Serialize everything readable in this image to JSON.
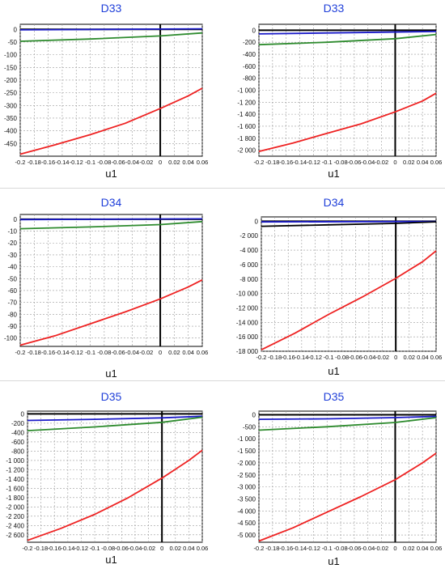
{
  "colors": {
    "title": "#1f3fd9",
    "black": "#000000",
    "blue": "#1a1ac8",
    "green": "#2e8b2e",
    "red": "#ee2222",
    "grid": "#9a9a9a"
  },
  "chart_data": [
    {
      "type": "line",
      "title": "D33",
      "xlabel": "u1",
      "ylabel": "",
      "xlim": [
        -0.2,
        0.06
      ],
      "ylim": [
        -500,
        20
      ],
      "xticks": [
        "-0.2",
        "-0.18",
        "-0.16",
        "-0.14",
        "-0.12",
        "-0.1",
        "-0.08",
        "-0.06",
        "-0.04",
        "-0.02",
        "0",
        "0.02",
        "0.04",
        "0.06"
      ],
      "yticks": [
        "0",
        "-50",
        "-100",
        "-150",
        "-200",
        "-250",
        "-300",
        "-350",
        "-400",
        "-450"
      ],
      "grid": true,
      "series": [
        {
          "color": "black",
          "x": [
            -0.2,
            0.06
          ],
          "y": [
            0,
            0
          ]
        },
        {
          "color": "blue",
          "x": [
            -0.2,
            0.06
          ],
          "y": [
            -2,
            2
          ]
        },
        {
          "color": "green",
          "x": [
            -0.2,
            -0.1,
            0,
            0.06
          ],
          "y": [
            -47,
            -38,
            -26,
            -14
          ]
        },
        {
          "color": "red",
          "x": [
            -0.2,
            -0.15,
            -0.1,
            -0.05,
            0,
            0.04,
            0.06
          ],
          "y": [
            -492,
            -455,
            -415,
            -370,
            -312,
            -262,
            -232
          ]
        }
      ]
    },
    {
      "type": "line",
      "title": "D33",
      "xlabel": "u1",
      "ylabel": "",
      "xlim": [
        -0.2,
        0.06
      ],
      "ylim": [
        -2100,
        100
      ],
      "xticks": [
        "-0.2",
        "-0.18",
        "-0.16",
        "-0.14",
        "-0.12",
        "-0.1",
        "-0.08",
        "-0.06",
        "-0.04",
        "-0.02",
        "0",
        "0.02",
        "0.04",
        "0.06"
      ],
      "yticks": [
        "0",
        "-200",
        "-400",
        "-600",
        "-800",
        "-1 000",
        "-1 200",
        "-1 400",
        "-1 600",
        "-1 800",
        "-2 000"
      ],
      "grid": true,
      "series": [
        {
          "color": "black",
          "x": [
            -0.2,
            0.06
          ],
          "y": [
            0,
            0
          ]
        },
        {
          "color": "blue",
          "x": [
            -0.2,
            0.06
          ],
          "y": [
            -60,
            -20
          ]
        },
        {
          "color": "green",
          "x": [
            -0.2,
            -0.1,
            0,
            0.06
          ],
          "y": [
            -240,
            -200,
            -140,
            -70
          ]
        },
        {
          "color": "red",
          "x": [
            -0.2,
            -0.15,
            -0.1,
            -0.05,
            0,
            0.04,
            0.06
          ],
          "y": [
            -2020,
            -1880,
            -1720,
            -1560,
            -1360,
            -1180,
            -1050
          ]
        }
      ]
    },
    {
      "type": "line",
      "title": "D34",
      "xlabel": "u1",
      "ylabel": "",
      "xlim": [
        -0.2,
        0.06
      ],
      "ylim": [
        -107,
        4
      ],
      "xticks": [
        "-0.2",
        "-0.18",
        "-0.16",
        "-0.14",
        "-0.12",
        "-0.1",
        "-0.08",
        "-0.06",
        "-0.04",
        "-0.02",
        "0",
        "0.02",
        "0.04",
        "0.06"
      ],
      "yticks": [
        "0",
        "-10",
        "-20",
        "-30",
        "-40",
        "-50",
        "-60",
        "-70",
        "-80",
        "-90",
        "-100"
      ],
      "grid": true,
      "series": [
        {
          "color": "black",
          "x": [
            -0.2,
            0.06
          ],
          "y": [
            0,
            0
          ]
        },
        {
          "color": "blue",
          "x": [
            -0.2,
            0.06
          ],
          "y": [
            -0.3,
            0.3
          ]
        },
        {
          "color": "green",
          "x": [
            -0.2,
            -0.1,
            0,
            0.06
          ],
          "y": [
            -8,
            -6.5,
            -4.5,
            -2
          ]
        },
        {
          "color": "red",
          "x": [
            -0.2,
            -0.15,
            -0.1,
            -0.05,
            0,
            0.04,
            0.06
          ],
          "y": [
            -106,
            -98,
            -88,
            -78,
            -67,
            -57,
            -51
          ]
        }
      ]
    },
    {
      "type": "line",
      "title": "D34",
      "xlabel": "u1",
      "ylabel": "",
      "xlim": [
        -0.2,
        0.06
      ],
      "ylim": [
        -18000,
        600
      ],
      "xticks": [
        "-0.2",
        "-0.18",
        "-0.16",
        "-0.14",
        "-0.12",
        "-0.1",
        "-0.08",
        "-0.06",
        "-0.04",
        "-0.02",
        "0",
        "0.02",
        "0.04",
        "0.06"
      ],
      "yticks": [
        "0",
        "-2 000",
        "-4 000",
        "-6 000",
        "-8 000",
        "-10 000",
        "-12 000",
        "-14 000",
        "-16 000",
        "-18 000"
      ],
      "grid": true,
      "series": [
        {
          "color": "black",
          "x": [
            -0.2,
            0.06
          ],
          "y": [
            0,
            0
          ]
        },
        {
          "color": "blue",
          "x": [
            -0.2,
            0.06
          ],
          "y": [
            -100,
            -30
          ]
        },
        {
          "color": "black",
          "x": [
            -0.2,
            -0.1,
            0,
            0.06
          ],
          "y": [
            -700,
            -500,
            -300,
            -80
          ]
        },
        {
          "color": "red",
          "x": [
            -0.2,
            -0.15,
            -0.1,
            -0.05,
            0,
            0.04,
            0.06
          ],
          "y": [
            -17800,
            -15500,
            -12900,
            -10500,
            -7900,
            -5600,
            -4100
          ]
        }
      ]
    },
    {
      "type": "line",
      "title": "D35",
      "xlabel": "u1",
      "ylabel": "",
      "xlim": [
        -0.2,
        0.06
      ],
      "ylim": [
        -2760,
        60
      ],
      "xticks": [
        "-0.2",
        "-0.18",
        "-0.16",
        "-0.14",
        "-0.12",
        "-0.1",
        "-0.08",
        "-0.06",
        "-0.04",
        "-0.02",
        "0",
        "0.02",
        "0.04",
        "0.06"
      ],
      "yticks": [
        "0",
        "-200",
        "-400",
        "-600",
        "-800",
        "-1 000",
        "-1 200",
        "-1 400",
        "-1 600",
        "-1 800",
        "-2 000",
        "-2 200",
        "-2 400",
        "-2 600"
      ],
      "grid": true,
      "series": [
        {
          "color": "black",
          "x": [
            -0.2,
            0.06
          ],
          "y": [
            0,
            0
          ]
        },
        {
          "color": "blue",
          "x": [
            -0.2,
            -0.1,
            0,
            0.06
          ],
          "y": [
            -140,
            -115,
            -85,
            -50
          ]
        },
        {
          "color": "green",
          "x": [
            -0.2,
            -0.1,
            0,
            0.06
          ],
          "y": [
            -360,
            -280,
            -180,
            -70
          ]
        },
        {
          "color": "red",
          "x": [
            -0.2,
            -0.15,
            -0.1,
            -0.05,
            0,
            0.04,
            0.06
          ],
          "y": [
            -2720,
            -2460,
            -2160,
            -1800,
            -1380,
            -1000,
            -780
          ]
        }
      ]
    },
    {
      "type": "line",
      "title": "D35",
      "xlabel": "u1",
      "ylabel": "",
      "xlim": [
        -0.2,
        0.06
      ],
      "ylim": [
        -5300,
        150
      ],
      "xticks": [
        "-0.2",
        "-0.18",
        "-0.16",
        "-0.14",
        "-0.12",
        "-0.1",
        "-0.08",
        "-0.06",
        "-0.04",
        "-0.02",
        "0",
        "0.02",
        "0.04",
        "0.06"
      ],
      "yticks": [
        "0",
        "-500",
        "-1 000",
        "-1 500",
        "-2 000",
        "-2 500",
        "-3 000",
        "-3 500",
        "-4 000",
        "-4 500",
        "-5 000"
      ],
      "grid": true,
      "series": [
        {
          "color": "black",
          "x": [
            -0.2,
            0.06
          ],
          "y": [
            0,
            0
          ]
        },
        {
          "color": "blue",
          "x": [
            -0.2,
            -0.1,
            0,
            0.06
          ],
          "y": [
            -190,
            -170,
            -120,
            -70
          ]
        },
        {
          "color": "green",
          "x": [
            -0.2,
            -0.1,
            0,
            0.06
          ],
          "y": [
            -640,
            -500,
            -320,
            -120
          ]
        },
        {
          "color": "red",
          "x": [
            -0.2,
            -0.15,
            -0.1,
            -0.05,
            0,
            0.04,
            0.06
          ],
          "y": [
            -5250,
            -4700,
            -4050,
            -3400,
            -2700,
            -2000,
            -1600
          ]
        }
      ]
    }
  ]
}
